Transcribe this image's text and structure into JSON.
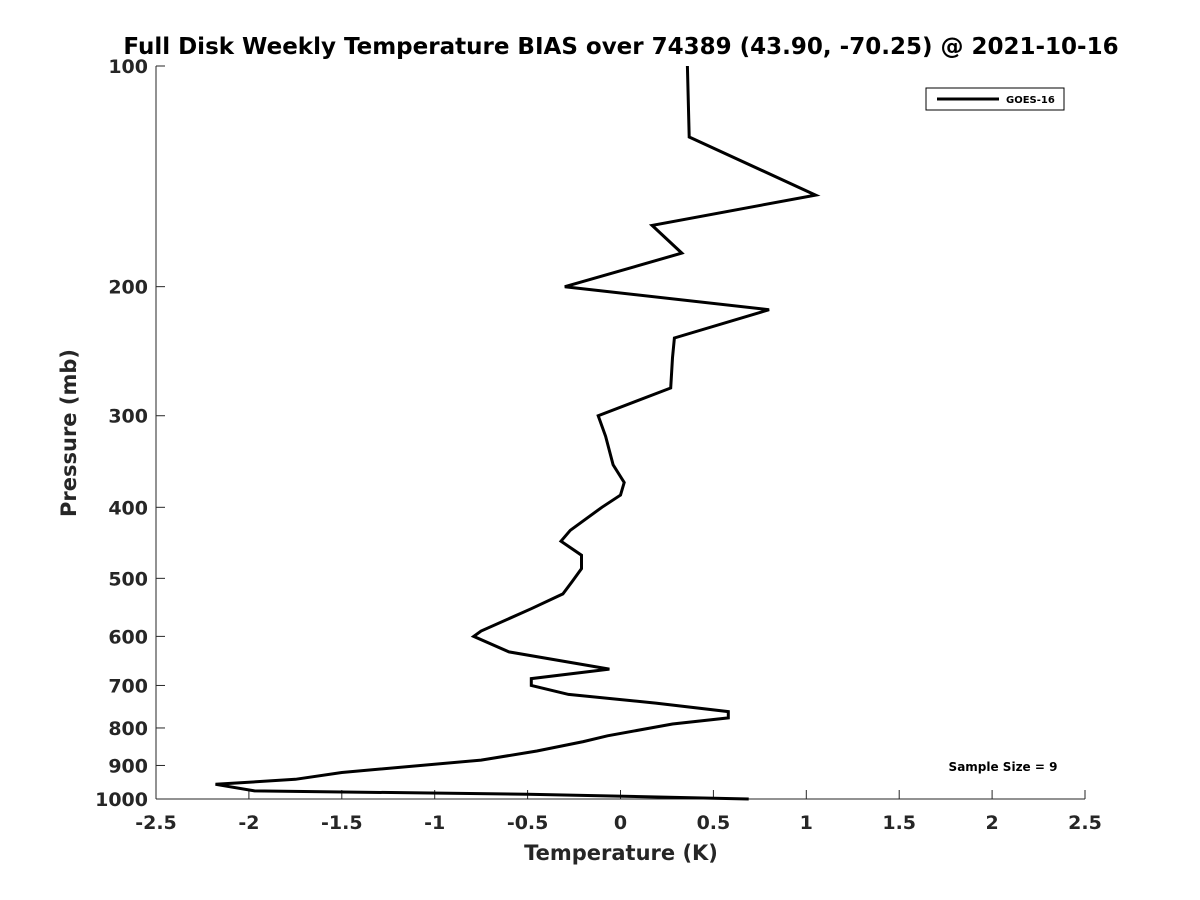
{
  "chart_data": {
    "type": "line",
    "title": "Full Disk Weekly Temperature BIAS over 74389 (43.90, -70.25) @ 2021-10-16",
    "xlabel": "Temperature (K)",
    "ylabel": "Pressure (mb)",
    "xlim": [
      -2.5,
      2.5
    ],
    "ylim": [
      100,
      1000
    ],
    "y_scale": "log",
    "y_reversed": true,
    "x_ticks": [
      "-2.5",
      "-2",
      "-1.5",
      "-1",
      "-0.5",
      "0",
      "0.5",
      "1",
      "1.5",
      "2",
      "2.5"
    ],
    "x_tick_values": [
      -2.5,
      -2,
      -1.5,
      -1,
      -0.5,
      0,
      0.5,
      1,
      1.5,
      2,
      2.5
    ],
    "y_ticks": [
      "100",
      "200",
      "300",
      "400",
      "500",
      "600",
      "700",
      "800",
      "900",
      "1000"
    ],
    "y_tick_values": [
      100,
      200,
      300,
      400,
      500,
      600,
      700,
      800,
      900,
      1000
    ],
    "grid": false,
    "legend_position": "top-right",
    "series": [
      {
        "name": "GOES-16",
        "color": "#000000",
        "points": [
          {
            "x": 0.36,
            "p": 100
          },
          {
            "x": 0.37,
            "p": 125
          },
          {
            "x": 1.05,
            "p": 150
          },
          {
            "x": 0.17,
            "p": 165
          },
          {
            "x": 0.33,
            "p": 180
          },
          {
            "x": -0.3,
            "p": 200
          },
          {
            "x": 0.8,
            "p": 215
          },
          {
            "x": 0.29,
            "p": 235
          },
          {
            "x": 0.28,
            "p": 250
          },
          {
            "x": 0.27,
            "p": 275
          },
          {
            "x": -0.12,
            "p": 300
          },
          {
            "x": -0.08,
            "p": 320
          },
          {
            "x": -0.04,
            "p": 350
          },
          {
            "x": 0.02,
            "p": 370
          },
          {
            "x": 0.0,
            "p": 385
          },
          {
            "x": -0.1,
            "p": 400
          },
          {
            "x": -0.27,
            "p": 430
          },
          {
            "x": -0.32,
            "p": 445
          },
          {
            "x": -0.21,
            "p": 465
          },
          {
            "x": -0.21,
            "p": 485
          },
          {
            "x": -0.26,
            "p": 505
          },
          {
            "x": -0.31,
            "p": 525
          },
          {
            "x": -0.48,
            "p": 550
          },
          {
            "x": -0.75,
            "p": 590
          },
          {
            "x": -0.79,
            "p": 600
          },
          {
            "x": -0.6,
            "p": 630
          },
          {
            "x": -0.06,
            "p": 665
          },
          {
            "x": -0.48,
            "p": 685
          },
          {
            "x": -0.48,
            "p": 700
          },
          {
            "x": -0.28,
            "p": 720
          },
          {
            "x": 0.19,
            "p": 740
          },
          {
            "x": 0.58,
            "p": 760
          },
          {
            "x": 0.58,
            "p": 775
          },
          {
            "x": 0.28,
            "p": 790
          },
          {
            "x": -0.07,
            "p": 820
          },
          {
            "x": -0.2,
            "p": 835
          },
          {
            "x": -0.45,
            "p": 860
          },
          {
            "x": -0.75,
            "p": 885
          },
          {
            "x": -1.5,
            "p": 920
          },
          {
            "x": -1.75,
            "p": 940
          },
          {
            "x": -2.18,
            "p": 955
          },
          {
            "x": -1.97,
            "p": 975
          },
          {
            "x": -0.5,
            "p": 985
          },
          {
            "x": 0.69,
            "p": 1000
          }
        ]
      }
    ],
    "annotations": [
      {
        "text": "Sample Size = 9"
      }
    ]
  }
}
